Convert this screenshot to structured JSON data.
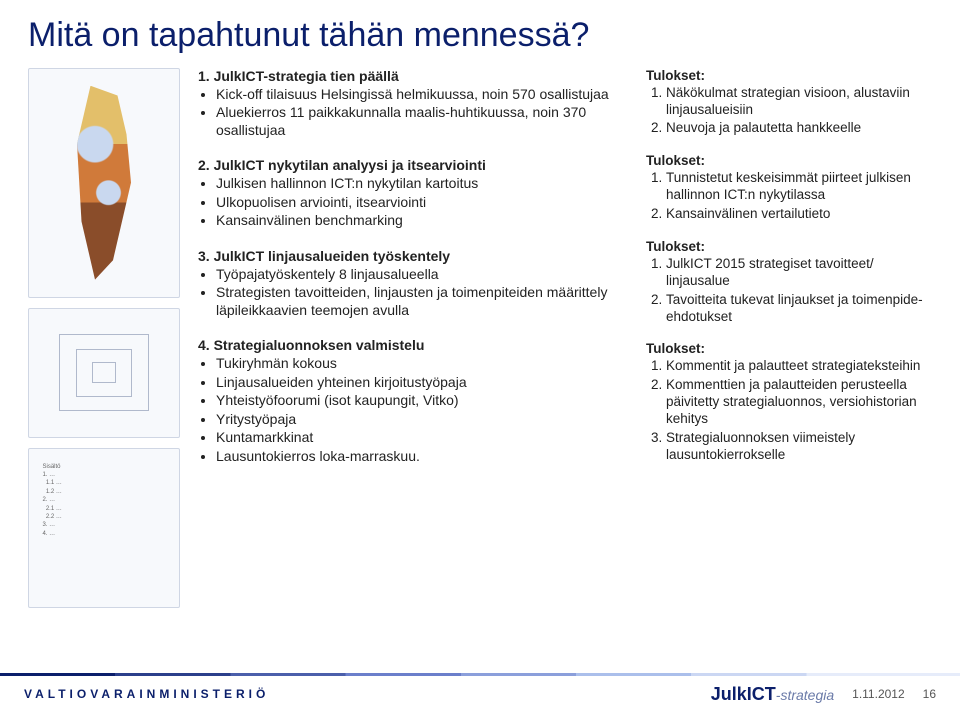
{
  "title": "Mitä on tapahtunut tähän mennessä?",
  "left_thumbs": {
    "map_alt": "Suomen kartta – aluekierrokset",
    "radar_alt": "Nykytilan analyysi -kaavio",
    "toc_alt": "Sisällysluettelo"
  },
  "mid": [
    {
      "title": "1. JulkICT-strategia tien päällä",
      "items": [
        "Kick-off tilaisuus Helsingissä helmikuussa, noin 570 osallistujaa",
        "Aluekierros 11 paikkakunnalla maalis-huhtikuussa, noin 370 osallistujaa"
      ]
    },
    {
      "title": "2. JulkICT nykytilan analyysi ja itsearviointi",
      "items": [
        "Julkisen hallinnon ICT:n nykytilan kartoitus",
        "Ulkopuolisen arviointi, itsearviointi",
        "Kansainvälinen benchmarking"
      ]
    },
    {
      "title": "3. JulkICT linjausalueiden työskentely",
      "items": [
        "Työpajatyöskentely 8 linjausalueella",
        "Strategisten tavoitteiden, linjausten ja toimenpiteiden määrittely läpileikkaavien teemojen avulla"
      ]
    },
    {
      "title": "4. Strategialuonnoksen valmistelu",
      "items": [
        "Tukiryhmän kokous",
        "Linjausalueiden yhteinen kirjoitustyöpaja",
        "Yhteistyöfoorumi (isot kaupungit, Vitko)",
        "Yritystyöpaja",
        "Kuntamarkkinat",
        "Lausuntokierros loka-marraskuu."
      ]
    }
  ],
  "right": [
    {
      "title": "Tulokset:",
      "items": [
        "Näkökulmat strategian visioon, alustaviin linjausalueisiin",
        "Neuvoja ja palautetta hankkeelle"
      ]
    },
    {
      "title": "Tulokset:",
      "items": [
        "Tunnistetut keskeisimmät piirteet julkisen hallinnon ICT:n nykytilassa",
        "Kansainvälinen vertailutieto"
      ]
    },
    {
      "title": "Tulokset:",
      "items": [
        "JulkICT 2015 strategiset tavoitteet/ linjausalue",
        "Tavoitteita tukevat linjaukset ja toimenpide-ehdotukset"
      ]
    },
    {
      "title": "Tulokset:",
      "items": [
        "Kommentit ja palautteet strategiateksteihin",
        "Kommenttien ja palautteiden perusteella päivitetty strategialuonnos, versiohistorian kehitys",
        "Strategialuonnoksen viimeistely lausuntokierrokselle"
      ]
    }
  ],
  "footer": {
    "ministry": "VALTIOVARAINMINISTERIÖ",
    "logo_main": "JulkICT",
    "logo_suffix": "-strategia",
    "date": "1.11.2012",
    "page": "16"
  }
}
